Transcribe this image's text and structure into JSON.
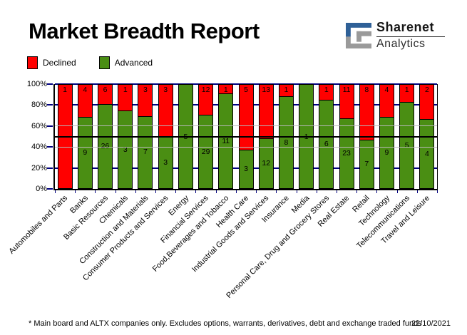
{
  "page": {
    "title": "Market Breadth Report"
  },
  "logo": {
    "icon": "sharenet-square-s",
    "line1": "Sharenet",
    "line2": "Analytics",
    "blue": "#2f6097",
    "gray": "#9a9a9a"
  },
  "legend": {
    "declined": "Declined",
    "advanced": "Advanced"
  },
  "colors": {
    "declined": "#ff0000",
    "advanced": "#4a8e13",
    "grid_gray": "#b8b8b8",
    "grid_navy": "#000080",
    "mid_line": "#000000",
    "axis": "#000000"
  },
  "footer": {
    "note": "* Main board and ALTX companies only. Excludes options, warrants, derivatives, debt and exchange traded funds",
    "date": "22/10/2021"
  },
  "chart_data": {
    "type": "bar",
    "subtype": "stacked-100-percent-column",
    "title": "Market Breadth Report",
    "xlabel": "",
    "ylabel": "",
    "ylim": [
      0,
      100
    ],
    "yticks": [
      "0%",
      "20%",
      "40%",
      "60%",
      "80%",
      "100%"
    ],
    "grid": {
      "gray_levels": [
        40,
        60
      ],
      "navy_levels": [
        20,
        80,
        100
      ],
      "mid_level": 50
    },
    "legend_position": "top-left",
    "categories": [
      "Automobiles and Parts",
      "Banks",
      "Basic Resources",
      "Chemicals",
      "Construction and Materials",
      "Consumer Products and Services",
      "Energy",
      "Financial Services",
      "Food,Beverages and Tobacco",
      "Health Care",
      "Industrial Goods and Services",
      "Insurance",
      "Media",
      "Personal Care, Drug and Grocery Stores",
      "Real Estate",
      "Retail",
      "Technology",
      "Telecommunications",
      "Travel and Leisure"
    ],
    "series": [
      {
        "name": "Declined",
        "color": "#ff0000",
        "values": [
          1,
          4,
          6,
          1,
          3,
          3,
          0,
          12,
          1,
          5,
          13,
          1,
          0,
          1,
          11,
          8,
          4,
          1,
          2
        ]
      },
      {
        "name": "Advanced",
        "color": "#4a8e13",
        "values": [
          0,
          9,
          26,
          3,
          7,
          3,
          5,
          29,
          11,
          3,
          12,
          8,
          1,
          6,
          23,
          7,
          9,
          5,
          4
        ]
      }
    ]
  }
}
